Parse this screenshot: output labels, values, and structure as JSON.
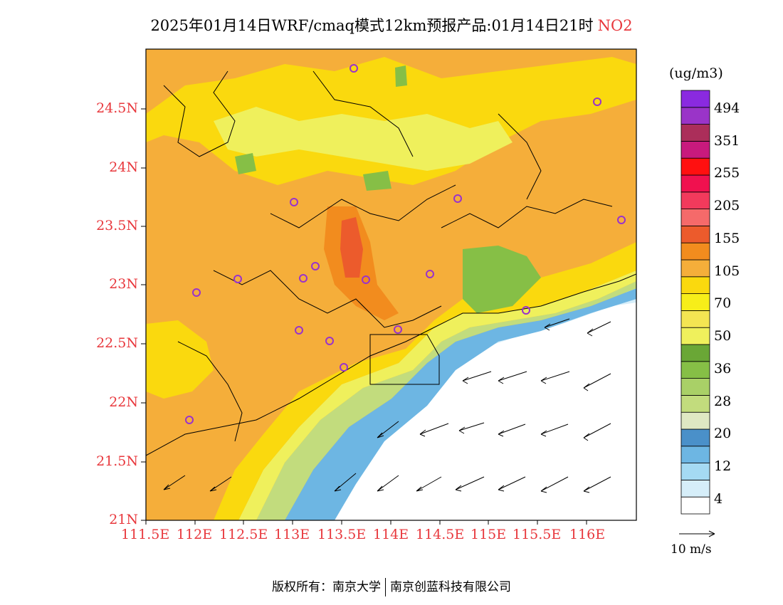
{
  "title": {
    "main": "2025年01月14日WRF/cmaq模式12km预报产品:01月14日21时",
    "species": "NO2"
  },
  "axes": {
    "y_labels": [
      "24.5N",
      "24N",
      "23.5N",
      "23N",
      "22.5N",
      "22N",
      "21.5N",
      "21N"
    ],
    "x_labels": [
      "111.5E",
      "112E",
      "112.5E",
      "113E",
      "113.5E",
      "114E",
      "114.5E",
      "115E",
      "115.5E",
      "116E"
    ]
  },
  "colorbar": {
    "unit": "(ug/m3)",
    "labels": [
      "494",
      "351",
      "255",
      "205",
      "155",
      "105",
      "70",
      "50",
      "36",
      "28",
      "20",
      "12",
      "4"
    ],
    "colors": [
      "#ffffff",
      "#d6eef9",
      "#a5daf3",
      "#6db6e3",
      "#4a90c9",
      "#dfe8c3",
      "#c2dc7d",
      "#a9d067",
      "#86bf46",
      "#6aa736",
      "#eff05c",
      "#f4e552",
      "#f7ee19",
      "#fad90e",
      "#f5ae3a",
      "#f28c1e",
      "#ec5b2c",
      "#f56a6a",
      "#f23a5c",
      "#f0114f",
      "#ff1010",
      "#c81a7d",
      "#ab2e5a",
      "#9a34c8",
      "#8a2ae0"
    ]
  },
  "wind_key": {
    "label": "10 m/s"
  },
  "colors": {
    "accent": "#e8383d",
    "station": "#9932cc"
  },
  "footer": {
    "left": "版权所有：南京大学",
    "right": "南京创蓝科技有限公司"
  }
}
